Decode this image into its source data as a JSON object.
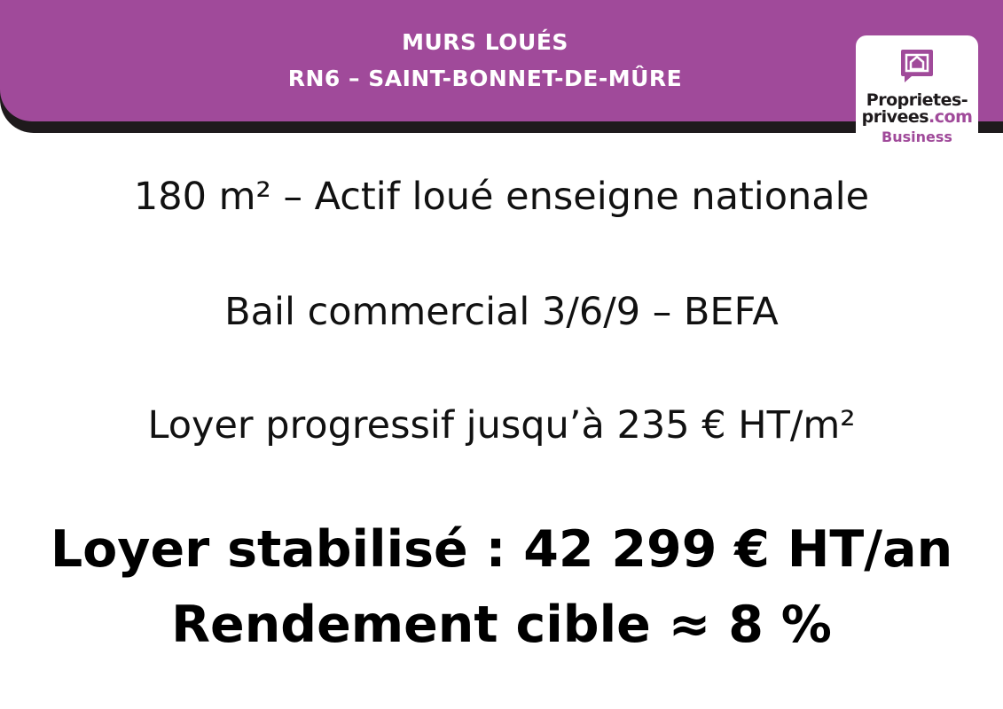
{
  "header": {
    "title_line1": "MURS LOUÉS",
    "title_line2": "RN6 – SAINT-BONNET-DE-MÛRE",
    "background_color": "#a04a9a"
  },
  "logo": {
    "icon": "house-speech-bubble-icon",
    "line1": "Proprietes-",
    "line2_a": "privees",
    "line2_b": ".com",
    "line3": "Business"
  },
  "details": [
    "180 m² – Actif loué enseigne nationale",
    "Bail commercial 3/6/9 – BEFA",
    "Loyer progressif jusqu’à 235 € HT/m²"
  ],
  "highlights": [
    "Loyer stabilisé : 42 299 € HT/an",
    "Rendement cible ≈ 8 %"
  ]
}
